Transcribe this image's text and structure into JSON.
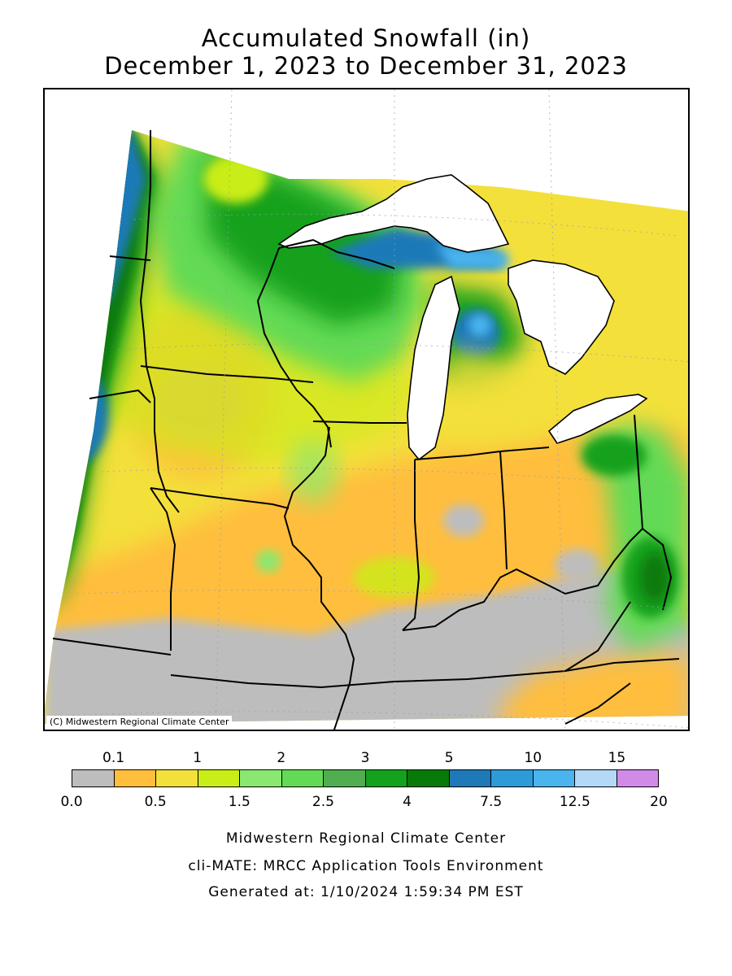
{
  "title_line1": "Accumulated Snowfall (in)",
  "title_line2": "December 1, 2023 to December 31, 2023",
  "copyright": "(C) Midwestern Regional Climate Center",
  "legend": {
    "colors": [
      "#bdbdbd",
      "#ffbe3d",
      "#f3e03b",
      "#c9ed16",
      "#8ae870",
      "#63da55",
      "#50ad50",
      "#14a11c",
      "#077a07",
      "#1f79b8",
      "#2e9bd8",
      "#4ab4ee",
      "#b3d9f7",
      "#d28ae8"
    ],
    "bottom_labels": [
      "0.0",
      "0.5",
      "1.5",
      "2.5",
      "4",
      "7.5",
      "12.5",
      "20"
    ],
    "top_labels": [
      "0.1",
      "1",
      "2",
      "3",
      "5",
      "10",
      "15"
    ]
  },
  "footer": {
    "line1": "Midwestern Regional Climate Center",
    "line2": "cli-MATE: MRCC Application Tools Environment",
    "line3": "Generated at: 1/10/2024 1:59:34 PM EST"
  }
}
